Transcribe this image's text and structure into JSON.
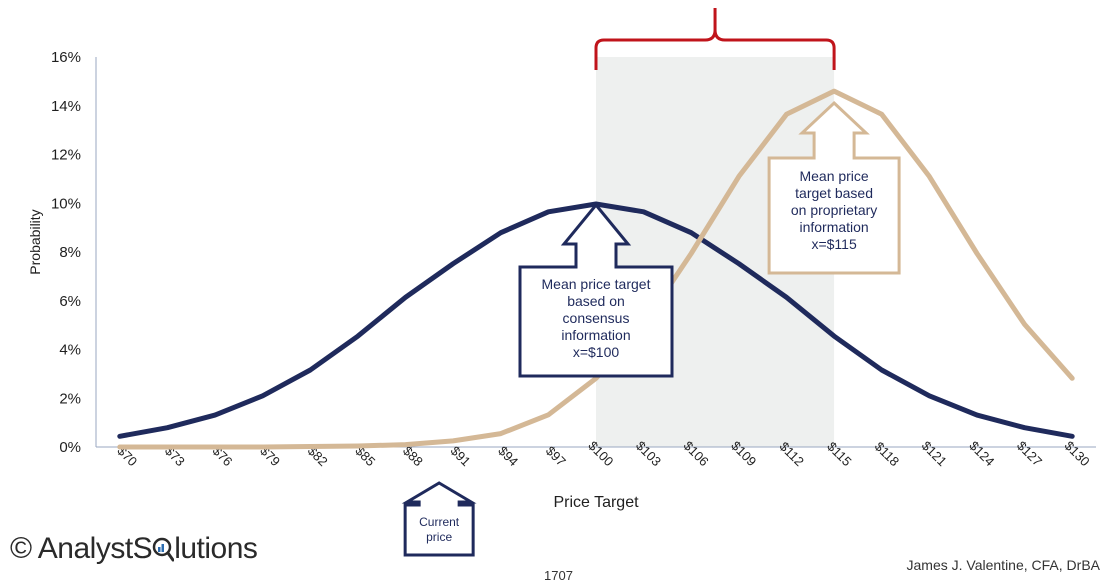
{
  "chart_data": {
    "type": "line",
    "xlabel": "Price Target",
    "ylabel": "Probability",
    "x": [
      70,
      73,
      76,
      79,
      82,
      85,
      88,
      91,
      94,
      97,
      100,
      103,
      106,
      109,
      112,
      115,
      118,
      121,
      124,
      127,
      130
    ],
    "x_tick_labels": [
      "$70",
      "$73",
      "$76",
      "$79",
      "$82",
      "$85",
      "$88",
      "$91",
      "$94",
      "$97",
      "$100",
      "$103",
      "$106",
      "$109",
      "$112",
      "$115",
      "$118",
      "$121",
      "$124",
      "$127",
      "$130"
    ],
    "ylim": [
      0,
      0.16
    ],
    "y_ticks": [
      0,
      0.02,
      0.04,
      0.06,
      0.08,
      0.1,
      0.12,
      0.14,
      0.16
    ],
    "y_tick_labels": [
      "0%",
      "2%",
      "4%",
      "6%",
      "8%",
      "10%",
      "12%",
      "14%",
      "16%"
    ],
    "grid": false,
    "series": [
      {
        "color": "#1f2a5c",
        "values": [
          0.0044,
          0.0079,
          0.0131,
          0.021,
          0.0316,
          0.0455,
          0.0614,
          0.0752,
          0.0879,
          0.0965,
          0.0997,
          0.0965,
          0.0879,
          0.0752,
          0.0614,
          0.0455,
          0.0316,
          0.021,
          0.0131,
          0.0079,
          0.0044
        ]
      },
      {
        "color": "#d4b896",
        "values": [
          0.0,
          0.0,
          0.0,
          0.0,
          0.0002,
          0.0004,
          0.001,
          0.0025,
          0.0055,
          0.0132,
          0.0282,
          0.0503,
          0.0794,
          0.111,
          0.1365,
          0.146,
          0.1365,
          0.111,
          0.0794,
          0.0503,
          0.0282
        ]
      }
    ],
    "shaded_range_x": [
      100,
      115
    ]
  },
  "annotations": {
    "consensus_callout": [
      "Mean price target",
      "based on",
      "consensus",
      "information",
      "x=$100"
    ],
    "proprietary_callout": [
      "Mean price",
      "target based",
      "on proprietary",
      "information",
      "x=$115"
    ],
    "current_price_callout": [
      "Current",
      "price"
    ],
    "current_price_x": 91
  },
  "colors": {
    "consensus": "#1f2a5c",
    "proprietary": "#d4b896",
    "brace": "#c0141b",
    "shade": "#eef0ef"
  },
  "footer": {
    "logo_prefix": "© AnalystS",
    "logo_suffix": "lutions",
    "logo_icon": "magnifier-icon",
    "author": "James J. Valentine, CFA, DrBA",
    "page_number": "1707"
  }
}
